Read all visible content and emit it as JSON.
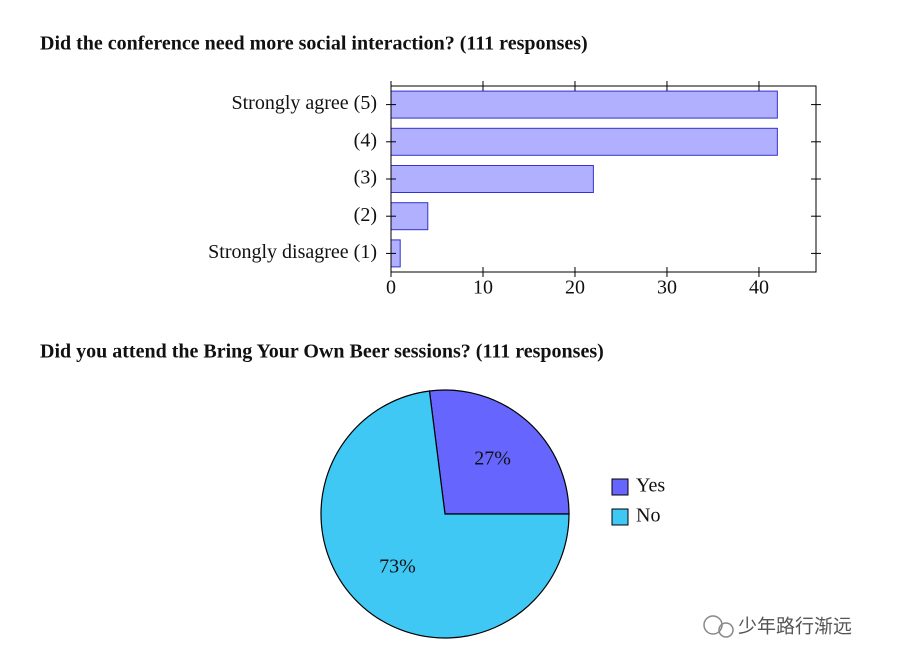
{
  "chart_data": [
    {
      "type": "bar",
      "horizontal": true,
      "title": "Did the conference need more social interaction? (111 responses)",
      "categories": [
        "Strongly agree (5)",
        "(4)",
        "(3)",
        "(2)",
        "Strongly disagree (1)"
      ],
      "values": [
        42,
        42,
        22,
        4,
        1
      ],
      "color": "#b0b0ff",
      "edge_color": "#3333cc",
      "xlim": [
        0,
        46.2
      ],
      "xticks": [
        0,
        10,
        20,
        30,
        40
      ]
    },
    {
      "type": "pie",
      "title": "Did you attend the Bring Your Own Beer sessions? (111 responses)",
      "categories": [
        "Yes",
        "No"
      ],
      "values": [
        27,
        73
      ],
      "value_labels": [
        "27%",
        "73%"
      ],
      "colors": [
        "#6666ff",
        "#40c8f4"
      ],
      "legend": "right"
    }
  ],
  "watermark": "少年路行渐远"
}
